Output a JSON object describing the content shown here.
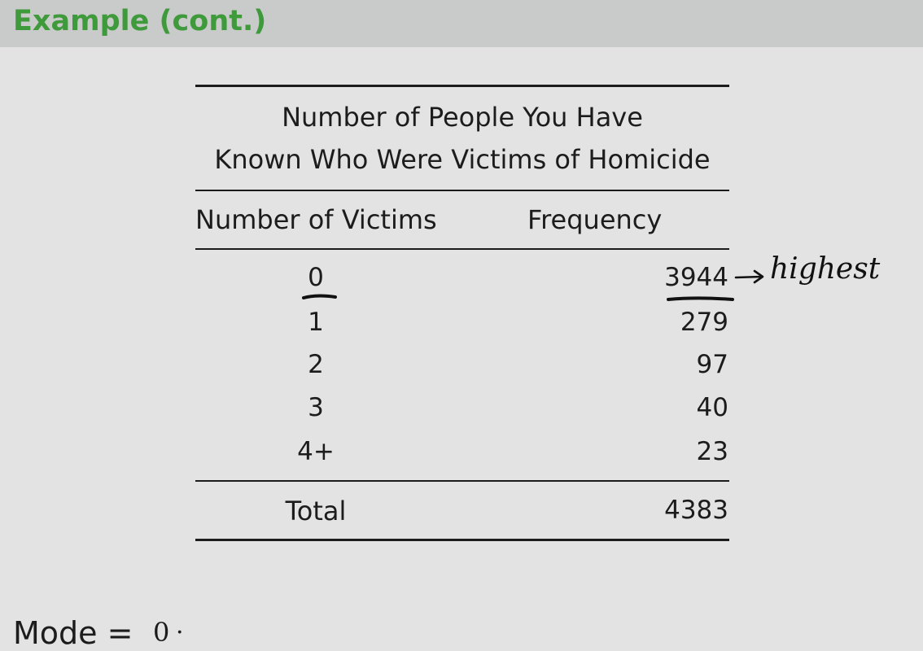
{
  "header": {
    "title": "Example (cont.)",
    "title_color": "#3f9a3b",
    "bar_color": "#c9cbca"
  },
  "table": {
    "caption_line1": "Number of People You Have",
    "caption_line2": "Known Who Were Victims of Homicide",
    "col_headers": [
      "Number of Victims",
      "Frequency"
    ],
    "rows": [
      {
        "victims": "0",
        "frequency": "3944"
      },
      {
        "victims": "1",
        "frequency": "279"
      },
      {
        "victims": "2",
        "frequency": "97"
      },
      {
        "victims": "3",
        "frequency": "40"
      },
      {
        "victims": "4+",
        "frequency": "23"
      }
    ],
    "total": {
      "label": "Total",
      "value": "4383"
    }
  },
  "annotations": {
    "arrow_note": "highest",
    "mode_label": "Mode =",
    "mode_value": "0",
    "mode_dot": "·"
  }
}
